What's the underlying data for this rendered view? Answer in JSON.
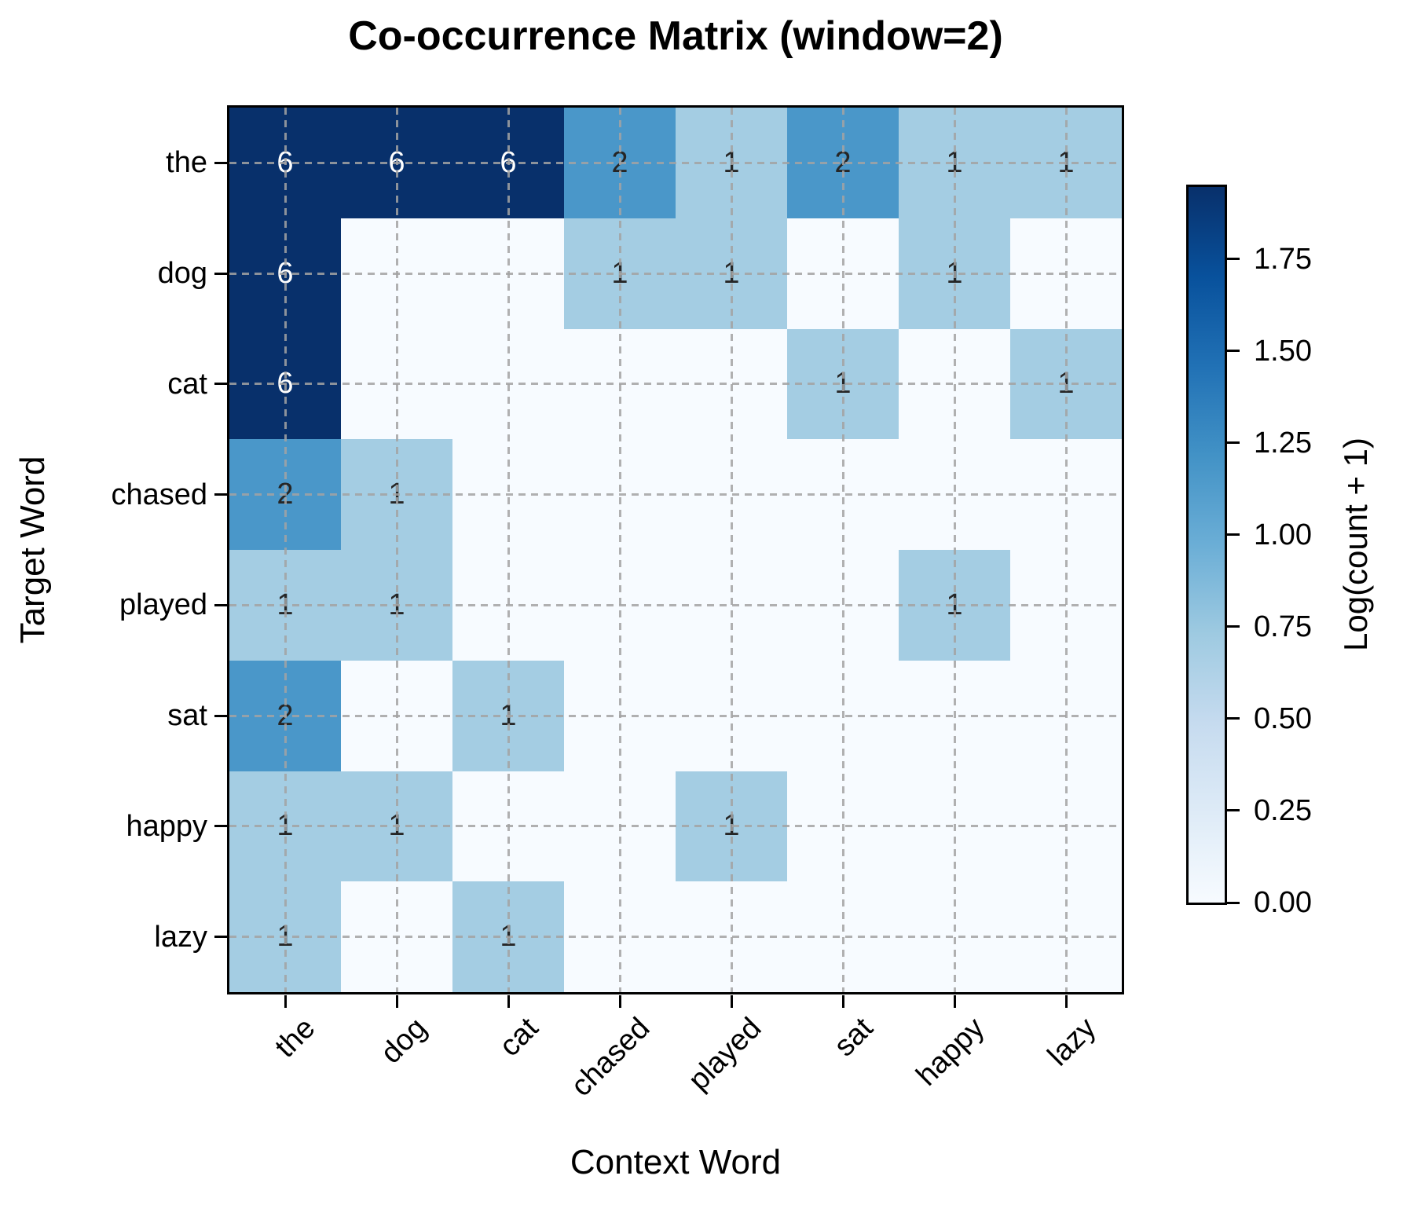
{
  "title": "Co-occurrence Matrix (window=2)",
  "chart_data": {
    "type": "heatmap",
    "title": "Co-occurrence Matrix (window=2)",
    "xlabel": "Context Word",
    "ylabel": "Target Word",
    "x_categories": [
      "the",
      "dog",
      "cat",
      "chased",
      "played",
      "sat",
      "happy",
      "lazy"
    ],
    "y_categories": [
      "the",
      "dog",
      "cat",
      "chased",
      "played",
      "sat",
      "happy",
      "lazy"
    ],
    "matrix": [
      [
        6,
        6,
        6,
        2,
        1,
        2,
        1,
        1
      ],
      [
        6,
        0,
        0,
        1,
        1,
        0,
        1,
        0
      ],
      [
        6,
        0,
        0,
        0,
        0,
        1,
        0,
        1
      ],
      [
        2,
        1,
        0,
        0,
        0,
        0,
        0,
        0
      ],
      [
        1,
        1,
        0,
        0,
        0,
        0,
        1,
        0
      ],
      [
        2,
        0,
        1,
        0,
        0,
        0,
        0,
        0
      ],
      [
        1,
        1,
        0,
        0,
        1,
        0,
        0,
        0
      ],
      [
        1,
        0,
        1,
        0,
        0,
        0,
        0,
        0
      ]
    ],
    "cell_label_rule": "show count only when count > 0",
    "value_colors": {
      "0": "#f7fbff",
      "1": "#a4cde3",
      "2": "#4a97c9",
      "6": "#08306b"
    },
    "cell_text_colors": {
      "on_dark": "#ffffff",
      "on_light": "#262626"
    },
    "grid": "dashed gray lines at tick positions, both axes",
    "color_scale": {
      "label": "Log(count + 1)",
      "transform": "log(count + 1)",
      "min": 0,
      "max": 1.9459,
      "tick_step": 0.25,
      "ticks": [
        "0.00",
        "0.25",
        "0.50",
        "0.75",
        "1.00",
        "1.25",
        "1.50",
        "1.75"
      ],
      "colormap": "Blues",
      "color_min": "#f7fbff",
      "color_max": "#08306b",
      "position": "right"
    }
  }
}
